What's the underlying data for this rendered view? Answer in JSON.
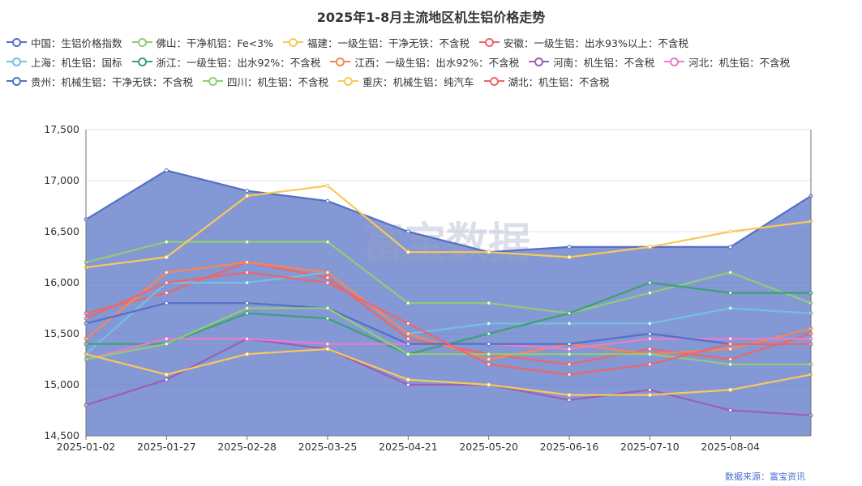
{
  "chart_data": {
    "type": "line",
    "title": "2025年1-8月主流地区机生铝价格走势",
    "xlabel": "",
    "ylabel": "",
    "ylim": [
      14500,
      17500
    ],
    "yticks": [
      14500,
      15000,
      15500,
      16000,
      16500,
      17000,
      17500
    ],
    "ytick_labels": [
      "14,500",
      "15,000",
      "15,500",
      "16,000",
      "16,500",
      "17,000",
      "17,500"
    ],
    "xticks": [
      "2025-01-02",
      "2025-01-27",
      "2025-02-28",
      "2025-03-25",
      "2025-04-21",
      "2025-05-20",
      "2025-06-16",
      "2025-07-10",
      "2025-08-04"
    ],
    "x": [
      "2025-01-02",
      "2025-01-27",
      "2025-02-28",
      "2025-03-25",
      "2025-04-21",
      "2025-05-20",
      "2025-06-16",
      "2025-07-10",
      "2025-08-04",
      "2025-08-22"
    ],
    "legend_position": "top-left",
    "grid": true,
    "source": "数据来源：富宝资讯",
    "watermark": "富宝数据",
    "series": [
      {
        "name": "中国：生铝价格指数",
        "color": "#5470c6",
        "area": true,
        "values": [
          16620,
          17100,
          16900,
          16800,
          16500,
          16300,
          16350,
          16350,
          16350,
          16850
        ]
      },
      {
        "name": "佛山：干净机铝：Fe<3%",
        "color": "#91cc75",
        "values": [
          16200,
          16400,
          16400,
          16400,
          15800,
          15800,
          15700,
          15900,
          16100,
          15800
        ]
      },
      {
        "name": "福建：一级生铝：干净无铁：不含税",
        "color": "#fac858",
        "values": [
          16150,
          16250,
          16850,
          16950,
          16300,
          16300,
          16250,
          16350,
          16500,
          16600
        ]
      },
      {
        "name": "安徽：一级生铝：出水93%以上：不含税",
        "color": "#ee6666",
        "values": [
          15700,
          15900,
          16200,
          16050,
          15450,
          15300,
          15200,
          15350,
          15250,
          15500
        ]
      },
      {
        "name": "上海：机生铝：国标",
        "color": "#73c0de",
        "values": [
          15300,
          16000,
          16000,
          16100,
          15500,
          15600,
          15600,
          15600,
          15750,
          15700
        ]
      },
      {
        "name": "浙江：一级生铝：出水92%：不含税",
        "color": "#3ba272",
        "values": [
          15400,
          15400,
          15700,
          15650,
          15300,
          15500,
          15700,
          16000,
          15900,
          15900
        ]
      },
      {
        "name": "江西：一级生铝：出水92%：不含税",
        "color": "#fc8452",
        "values": [
          15450,
          16100,
          16200,
          16100,
          15500,
          15250,
          15400,
          15300,
          15350,
          15550
        ]
      },
      {
        "name": "河南：机生铝：不含税",
        "color": "#9a60b4",
        "values": [
          14800,
          15050,
          15450,
          15350,
          15000,
          15000,
          14850,
          14950,
          14750,
          14700
        ]
      },
      {
        "name": "河北：机生铝：不含税",
        "color": "#ea7ccc",
        "values": [
          15250,
          15450,
          15450,
          15400,
          15400,
          15400,
          15350,
          15450,
          15450,
          15450
        ]
      },
      {
        "name": "贵州：机械生铝：干净无铁：不含税",
        "color": "#5470c6",
        "values": [
          15600,
          15800,
          15800,
          15750,
          15400,
          15400,
          15400,
          15500,
          15400,
          15400
        ]
      },
      {
        "name": "四川：机生铝：不含税",
        "color": "#91cc75",
        "values": [
          15250,
          15400,
          15750,
          15750,
          15300,
          15300,
          15300,
          15300,
          15200,
          15200
        ]
      },
      {
        "name": "重庆：机械生铝：纯汽车",
        "color": "#fac858",
        "values": [
          15300,
          15100,
          15300,
          15350,
          15050,
          15000,
          14900,
          14900,
          14950,
          15100
        ]
      },
      {
        "name": "湖北：机生铝：不含税",
        "color": "#ee6666",
        "values": [
          15650,
          16000,
          16100,
          16000,
          15600,
          15200,
          15100,
          15200,
          15400,
          15400
        ]
      }
    ]
  }
}
